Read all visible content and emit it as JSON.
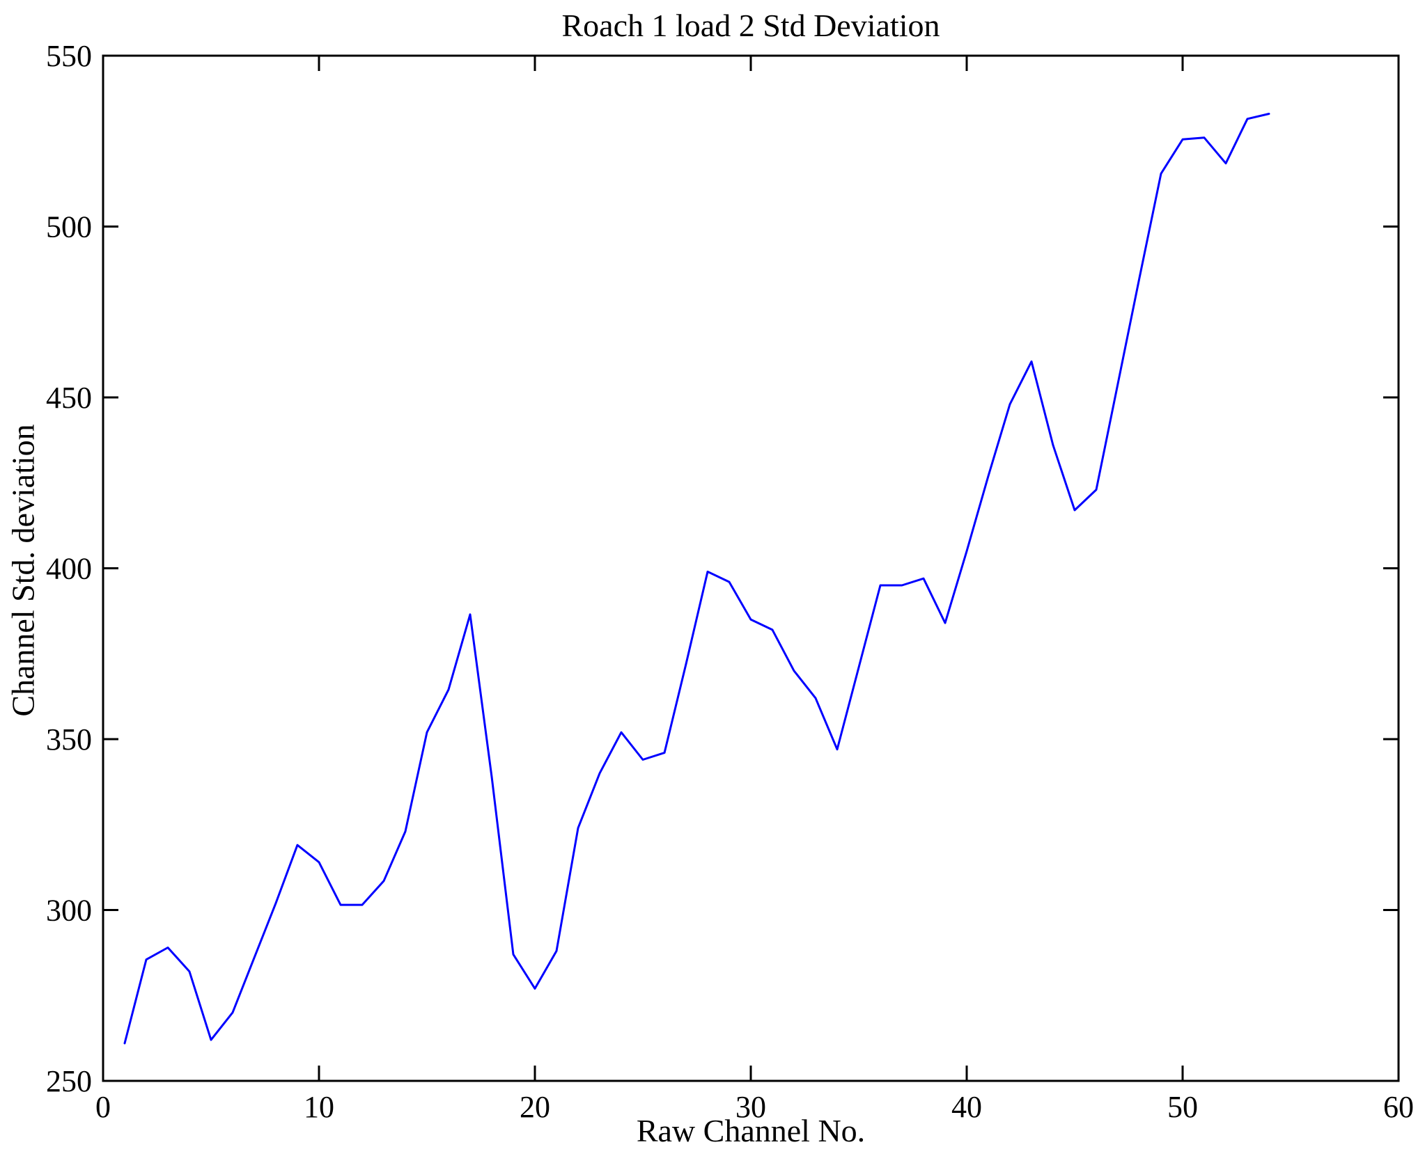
{
  "chart_data": {
    "type": "line",
    "title": "Roach 1 load 2 Std Deviation",
    "xlabel": "Raw Channel No.",
    "ylabel": "Channel Std. deviation",
    "xlim": [
      0,
      60
    ],
    "ylim": [
      250,
      550
    ],
    "xticks": [
      0,
      10,
      20,
      30,
      40,
      50,
      60
    ],
    "yticks": [
      250,
      300,
      350,
      400,
      450,
      500,
      550
    ],
    "grid": false,
    "legend": "none",
    "line_color": "#0000ff",
    "axis_color": "#000000",
    "background_color": "#ffffff",
    "series_name": "Channel Std. deviation",
    "x": [
      1,
      2,
      3,
      4,
      5,
      6,
      7,
      8,
      9,
      10,
      11,
      12,
      13,
      14,
      15,
      16,
      17,
      18,
      19,
      20,
      21,
      22,
      23,
      24,
      25,
      26,
      27,
      28,
      29,
      30,
      31,
      32,
      33,
      34,
      35,
      36,
      37,
      38,
      39,
      40,
      41,
      42,
      43,
      44,
      45,
      46,
      47,
      48,
      49,
      50,
      51,
      52,
      53,
      54
    ],
    "values": [
      261,
      285.5,
      289,
      282,
      262,
      270,
      286,
      302,
      319,
      314,
      301.5,
      301.5,
      308.5,
      323,
      352,
      364.5,
      386.5,
      339,
      287,
      277,
      288,
      324,
      340,
      352,
      344,
      346,
      372,
      399,
      396,
      385,
      382,
      370,
      362,
      347,
      371,
      395,
      395,
      397,
      384,
      405,
      427,
      448,
      460.5,
      436,
      417,
      423,
      454,
      485,
      515.5,
      525.5,
      526,
      518.5,
      531.5,
      533
    ]
  }
}
